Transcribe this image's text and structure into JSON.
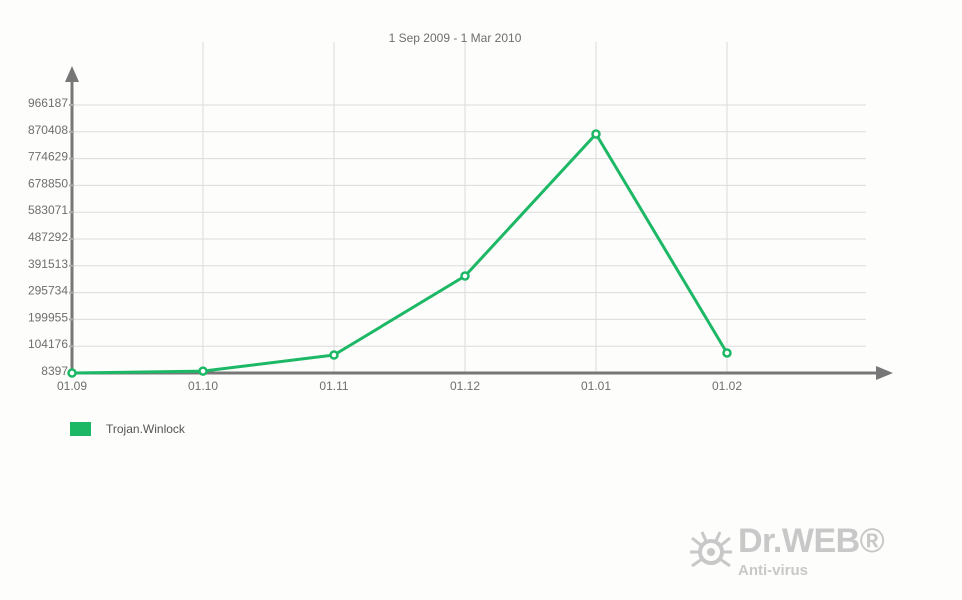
{
  "chart_data": {
    "type": "line",
    "title": "1 Sep 2009 - 1 Mar 2010",
    "categories": [
      "01.09",
      "01.10",
      "01.11",
      "01.12",
      "01.01",
      "01.02"
    ],
    "series": [
      {
        "name": "Trojan.Winlock",
        "color": "#1db866",
        "values": [
          8397,
          15000,
          72700,
          355000,
          862600,
          80000
        ]
      }
    ],
    "yticks": [
      "8397",
      "104176",
      "199955",
      "295734",
      "391513",
      "487292",
      "583071",
      "678850",
      "774629",
      "870408",
      "966187"
    ],
    "ylim": [
      8397,
      966187
    ],
    "grid": true,
    "legend": "bottom-left"
  },
  "logo": {
    "brand": "Dr.WEB®",
    "sub": "Anti-virus"
  }
}
